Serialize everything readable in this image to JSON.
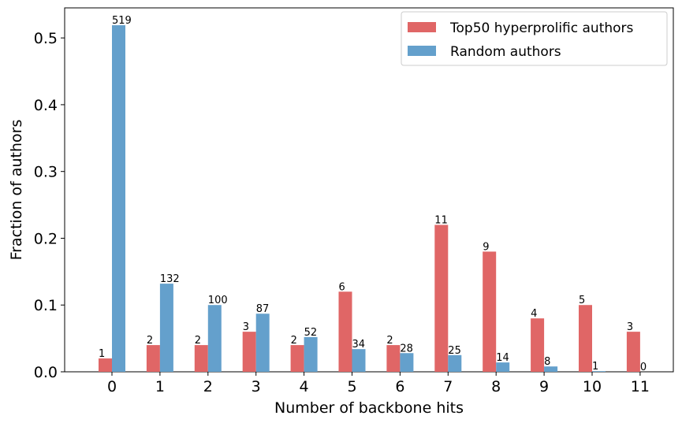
{
  "chart_data": {
    "type": "bar",
    "title": "",
    "xlabel": "Number of backbone hits",
    "ylabel": "Fraction of authors",
    "categories": [
      "0",
      "1",
      "2",
      "3",
      "4",
      "5",
      "6",
      "7",
      "8",
      "9",
      "10",
      "11"
    ],
    "ylim": [
      0,
      0.545
    ],
    "yticks": [
      "0.0",
      "0.1",
      "0.2",
      "0.3",
      "0.4",
      "0.5"
    ],
    "grid": false,
    "legend_position": "top-right",
    "series": [
      {
        "name": "Top50 hyperprolific authors",
        "color": "#e06666",
        "values": [
          0.02,
          0.04,
          0.04,
          0.06,
          0.04,
          0.12,
          0.04,
          0.22,
          0.18,
          0.08,
          0.1,
          0.06
        ],
        "labels": [
          "1",
          "2",
          "2",
          "3",
          "2",
          "6",
          "2",
          "11",
          "9",
          "4",
          "5",
          "3"
        ]
      },
      {
        "name": "Random authors",
        "color": "#64a0cc",
        "values": [
          0.519,
          0.132,
          0.1,
          0.087,
          0.052,
          0.034,
          0.028,
          0.025,
          0.014,
          0.008,
          0.001,
          0.0
        ],
        "labels": [
          "519",
          "132",
          "100",
          "87",
          "52",
          "34",
          "28",
          "25",
          "14",
          "8",
          "1",
          "0"
        ]
      }
    ]
  }
}
